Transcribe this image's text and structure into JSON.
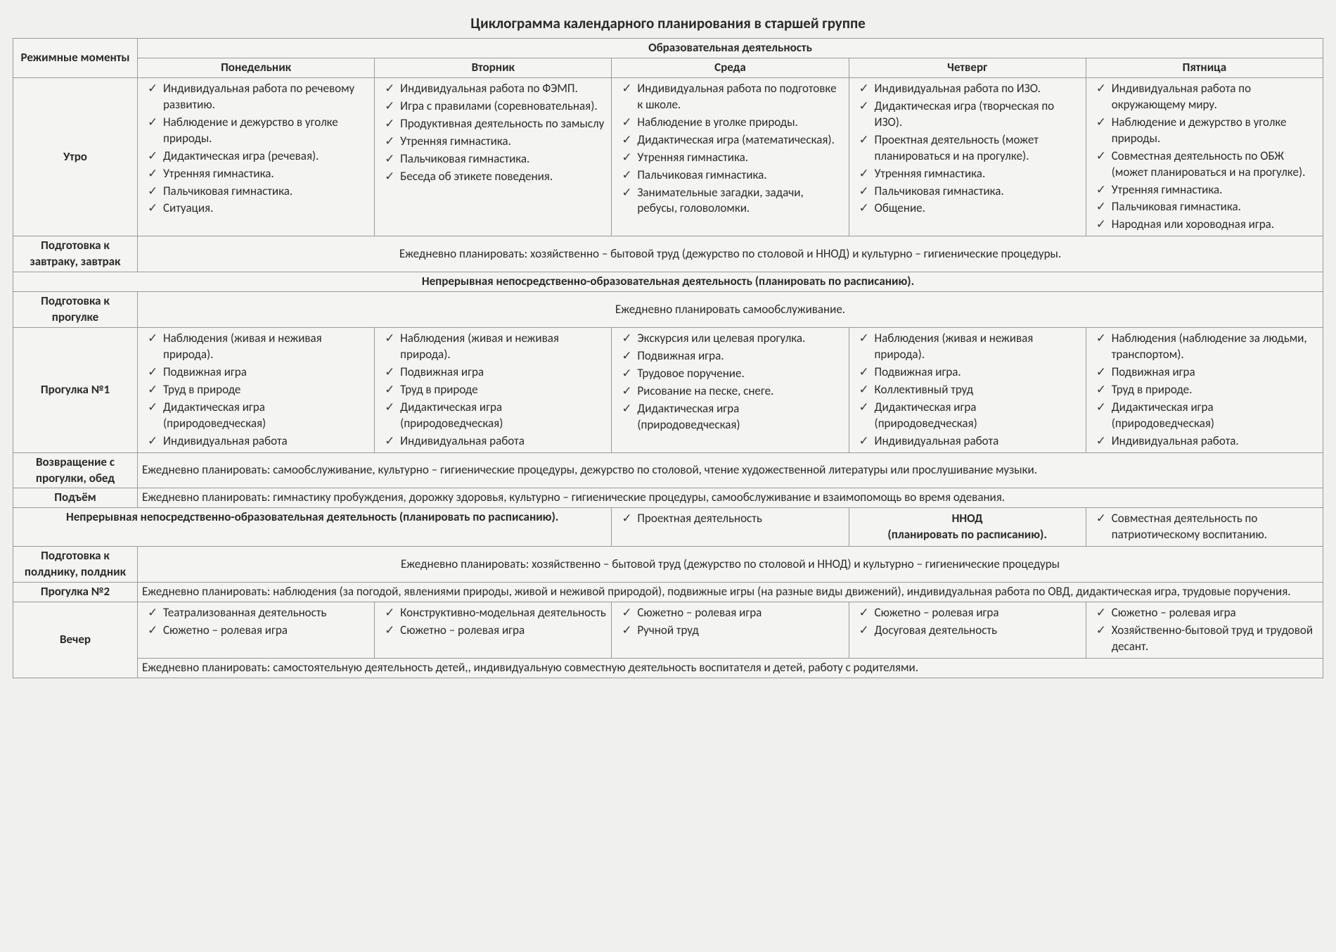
{
  "title": "Циклограмма календарного планирования в старшей группе",
  "colHeaders": {
    "moments": "Режимные моменты",
    "edu": "Образовательная деятельность",
    "mon": "Понедельник",
    "tue": "Вторник",
    "wed": "Среда",
    "thu": "Четверг",
    "fri": "Пятница"
  },
  "rows": {
    "morning": {
      "label": "Утро",
      "mon": [
        "Индивидуальная работа по речевому развитию.",
        "Наблюдение и дежурство в уголке природы.",
        "Дидактическая игра (речевая).",
        "Утренняя гимнастика.",
        "Пальчиковая гимнастика.",
        "Ситуация."
      ],
      "tue": [
        "Индивидуальная работа по ФЭМП.",
        "Игра с правилами (соревновательная).",
        "Продуктивная деятельность по замыслу",
        "Утренняя гимнастика.",
        "Пальчиковая гимнастика.",
        "Беседа об этикете поведения."
      ],
      "wed": [
        "Индивидуальная работа по подготовке к школе.",
        "Наблюдение в уголке природы.",
        "Дидактическая игра (математическая).",
        "Утренняя гимнастика.",
        "Пальчиковая гимнастика.",
        "Занимательные загадки, задачи, ребусы, головоломки."
      ],
      "thu": [
        "Индивидуальная работа по ИЗО.",
        "Дидактическая игра (творческая по ИЗО).",
        "Проектная деятельность (может планироваться и на прогулке).",
        "Утренняя гимнастика.",
        "Пальчиковая гимнастика.",
        "Общение."
      ],
      "fri": [
        "Индивидуальная работа по окружающему миру.",
        "Наблюдение и дежурство в уголке природы.",
        "Совместная деятельность по ОБЖ (может планироваться и на прогулке).",
        "Утренняя гимнастика.",
        "Пальчиковая гимнастика.",
        "Народная или хороводная игра."
      ]
    },
    "breakfast": {
      "label": "Подготовка к завтраку, завтрак",
      "text": "Ежедневно планировать: хозяйственно – бытовой труд (дежурство по столовой и ННОД) и культурно – гигиенические процедуры."
    },
    "nnod_header": "Непрерывная непосредственно-образовательная деятельность (планировать по расписанию).",
    "prep_walk": {
      "label": "Подготовка к прогулке",
      "text": "Ежедневно планировать самообслуживание."
    },
    "walk1": {
      "label": "Прогулка №1",
      "mon": [
        "Наблюдения (живая и неживая природа).",
        "Подвижная игра",
        "Труд в природе",
        "Дидактическая игра (природоведческая)",
        "Индивидуальная работа"
      ],
      "tue": [
        "Наблюдения (живая и неживая природа).",
        "Подвижная игра",
        "Труд в природе",
        "Дидактическая игра (природоведческая)",
        "Индивидуальная работа"
      ],
      "wed": [
        "Экскурсия или целевая прогулка.",
        "Подвижная игра.",
        "Трудовое поручение.",
        "Рисование на песке, снеге.",
        "Дидактическая игра (природоведческая)"
      ],
      "thu": [
        "Наблюдения (живая и неживая природа).",
        "Подвижная игра.",
        "Коллективный труд",
        "Дидактическая игра (природоведческая)",
        "Индивидуальная работа"
      ],
      "fri": [
        "Наблюдения (наблюдение за людьми, транспортом).",
        "Подвижная игра",
        "Труд в природе.",
        "Дидактическая игра (природоведческая)",
        "Индивидуальная работа."
      ]
    },
    "return_lunch": {
      "label": "Возвращение с прогулки, обед",
      "text": "Ежедневно планировать: самообслуживание, культурно – гигиенические процедуры, дежурство по столовой, чтение художественной литературы или прослушивание музыки."
    },
    "wakeup": {
      "label": "Подъём",
      "text": "Ежедневно планировать: гимнастику пробуждения, дорожку здоровья, культурно – гигиенические процедуры, самообслуживание и взаимопомощь во время одевания."
    },
    "afternoon": {
      "left_label": "Непрерывная непосредственно-образовательная деятельность (планировать по расписанию).",
      "wed": [
        "Проектная деятельность"
      ],
      "thu_label": "ННОД",
      "thu_sub": "(планировать по расписанию).",
      "fri": [
        "Совместная деятельность по патриотическому воспитанию."
      ]
    },
    "snack": {
      "label": "Подготовка к полднику, полдник",
      "text": "Ежедневно планировать: хозяйственно – бытовой труд (дежурство по столовой и ННОД) и культурно – гигиенические процедуры"
    },
    "walk2": {
      "label": "Прогулка №2",
      "text": "Ежедневно планировать: наблюдения (за погодой, явлениями природы, живой и неживой природой), подвижные игры (на разные виды движений), индивидуальная работа по ОВД, дидактическая игра, трудовые поручения."
    },
    "evening": {
      "label": "Вечер",
      "mon": [
        "Театрализованная деятельность",
        "Сюжетно – ролевая игра"
      ],
      "tue": [
        "Конструктивно-модельная деятельность",
        "Сюжетно – ролевая игра"
      ],
      "wed": [
        "Сюжетно – ролевая игра",
        "Ручной труд"
      ],
      "thu": [
        "Сюжетно – ролевая игра",
        "Досуговая деятельность"
      ],
      "fri": [
        "Сюжетно – ролевая игра",
        "Хозяйственно-бытовой труд и трудовой десант."
      ],
      "footer": "Ежедневно планировать: самостоятельную деятельность детей,, индивидуальную совместную деятельность воспитателя и детей, работу с родителями."
    }
  }
}
